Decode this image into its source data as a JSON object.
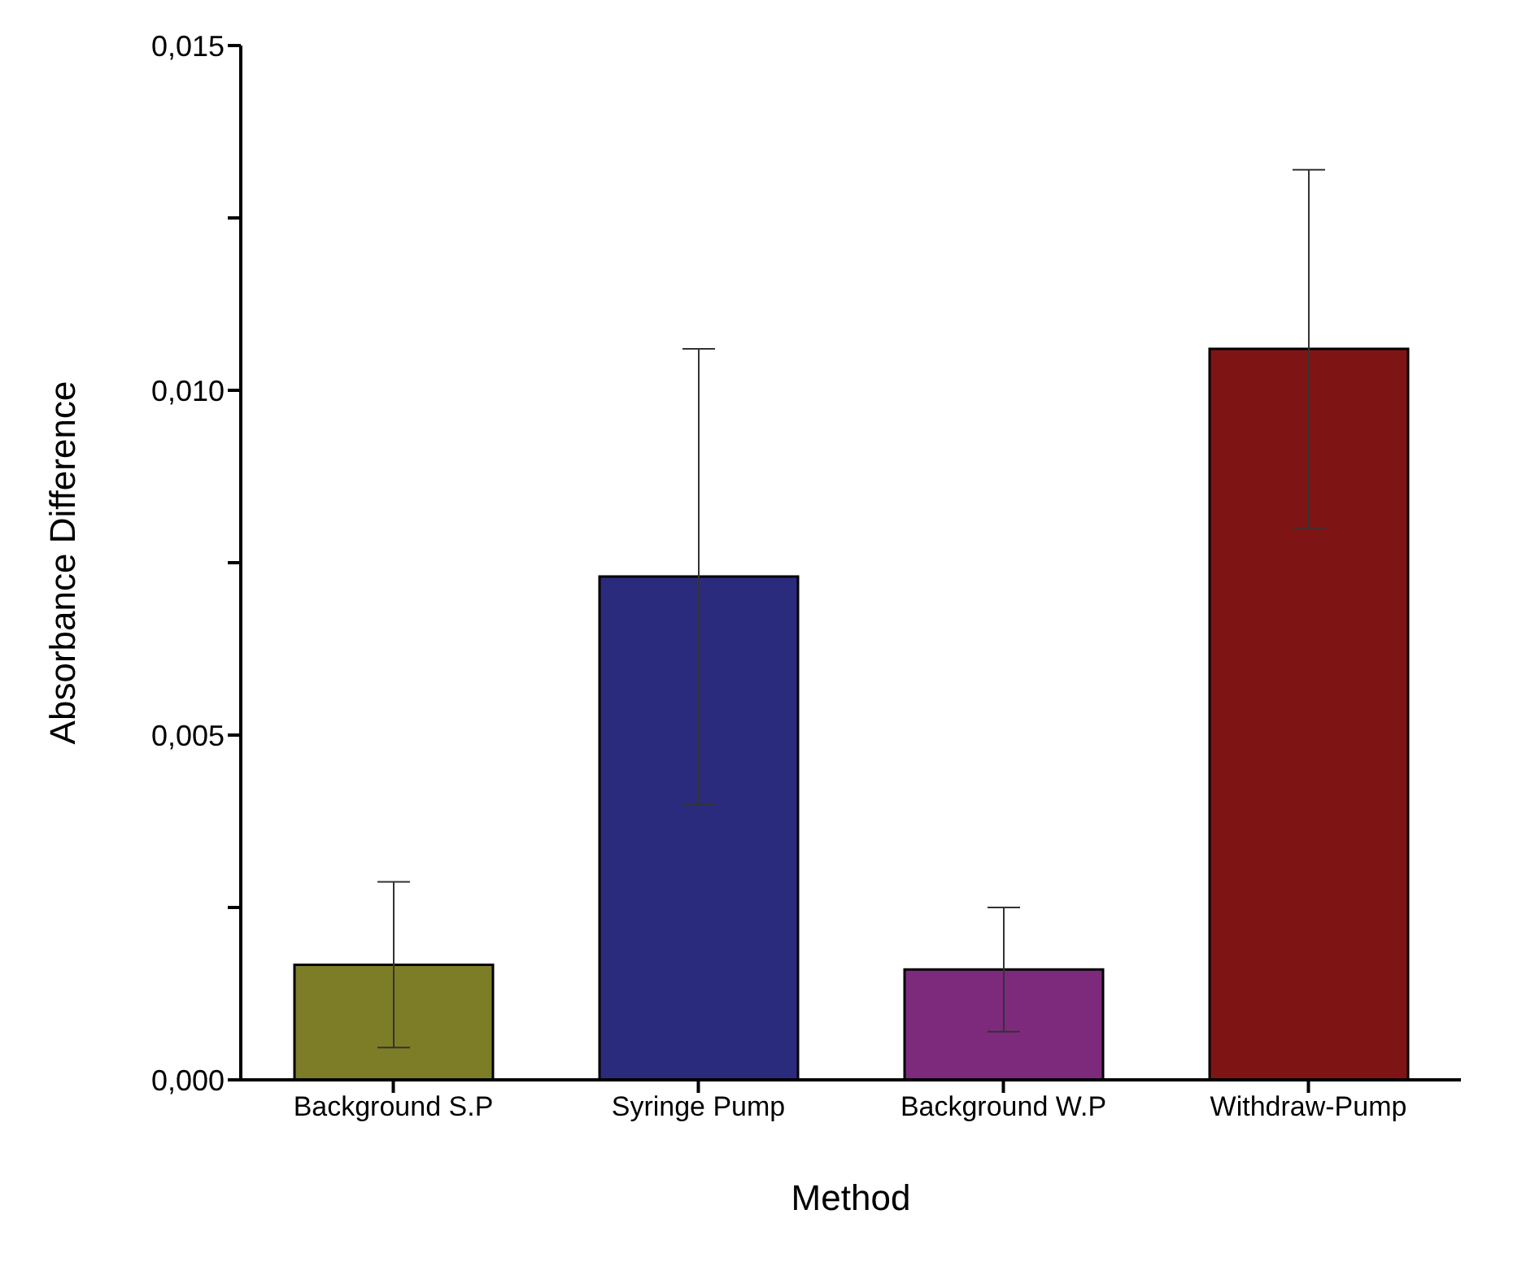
{
  "chart_data": {
    "type": "bar",
    "xlabel": "Method",
    "ylabel": "Absorbance Difference",
    "categories": [
      "Background S.P",
      "Syringe Pump",
      "Background W.P",
      "Withdraw-Pump"
    ],
    "values": [
      0.00167,
      0.0073,
      0.0016,
      0.0106
    ],
    "errors": [
      0.0012,
      0.0033,
      0.0009,
      0.0026
    ],
    "colors": [
      "#7d7d27",
      "#2b2b7d",
      "#7d2a7d",
      "#7f1414"
    ],
    "ylim": [
      0,
      0.015
    ],
    "yticks": [
      {
        "value": 0,
        "label": "0,000"
      },
      {
        "value": 0.0025,
        "label": null
      },
      {
        "value": 0.005,
        "label": "0,005"
      },
      {
        "value": 0.0075,
        "label": null
      },
      {
        "value": 0.01,
        "label": "0,010"
      },
      {
        "value": 0.0125,
        "label": null
      },
      {
        "value": 0.015,
        "label": "0,015"
      }
    ]
  }
}
